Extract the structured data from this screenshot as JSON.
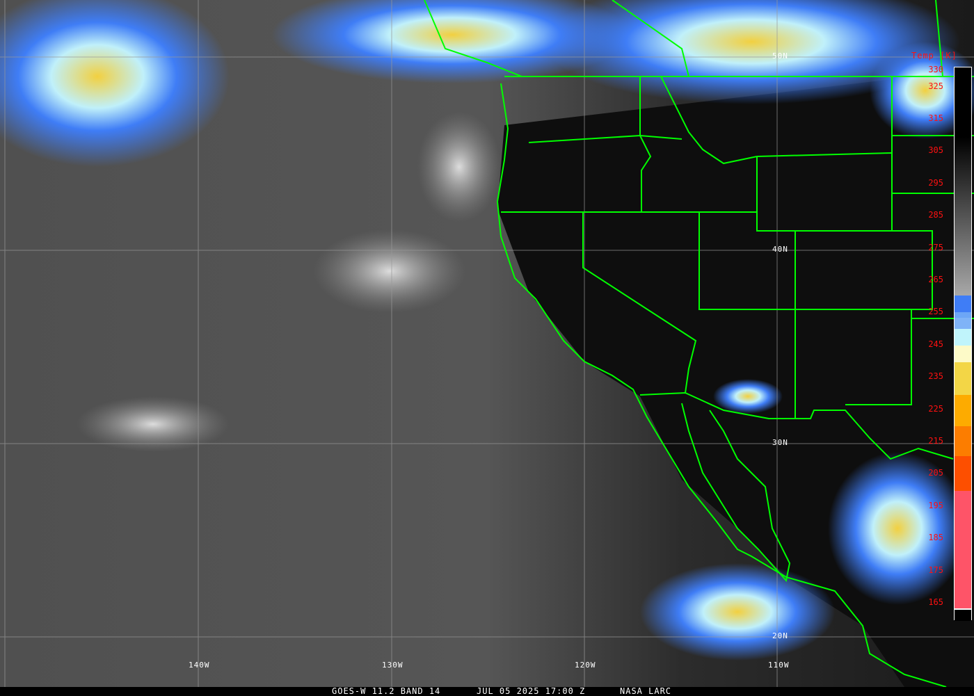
{
  "caption": {
    "satellite": "GOES-W 11.2 BAND 14",
    "datetime": "JUL 05 2025 17:00 Z",
    "source": "NASA LARC"
  },
  "grid": {
    "longitudes": [
      "140W",
      "130W",
      "120W",
      "110W"
    ],
    "latitudes": [
      "50N",
      "40N",
      "30N",
      "20N"
    ]
  },
  "colorbar": {
    "title": "Temp [K]",
    "ticks": [
      "330",
      "325",
      "315",
      "305",
      "295",
      "285",
      "275",
      "265",
      "255",
      "245",
      "235",
      "225",
      "215",
      "205",
      "195",
      "185",
      "175",
      "165"
    ],
    "colors": {
      "blue": "#3f7df6",
      "light_blue": "#7fb3f7",
      "cyan": "#c0f4fb",
      "cream": "#fdfac8",
      "yellow": "#f3d646",
      "orange": "#fdab00",
      "dark_orange": "#fc7d00",
      "red_orange": "#fd4f00",
      "pink": "#fe5468"
    }
  },
  "overlay_color": "#00ff00"
}
